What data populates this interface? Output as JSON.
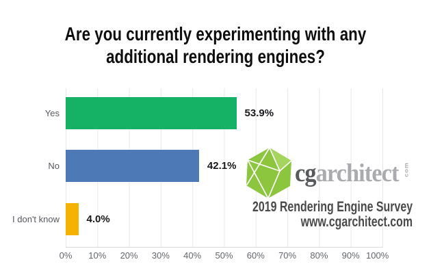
{
  "title": {
    "line1": "Are you currently experimenting with any",
    "line2": "additional rendering engines?"
  },
  "chart_data": {
    "type": "bar",
    "orientation": "horizontal",
    "categories": [
      "Yes",
      "No",
      "I don't know"
    ],
    "values": [
      53.9,
      42.1,
      4.0
    ],
    "value_labels": [
      "53.9%",
      "42.1%",
      "4.0%"
    ],
    "bar_colors": [
      "#15b266",
      "#4d79b7",
      "#f6b200"
    ],
    "xlabel": "",
    "ylabel": "",
    "xlim": [
      0,
      100
    ],
    "x_ticks": [
      "0%",
      "10%",
      "20%",
      "30%",
      "40%",
      "50%",
      "60%",
      "70%",
      "80%",
      "90%",
      "100%"
    ],
    "grid": true,
    "grid_color": "#e7e7e9",
    "legend": false
  },
  "watermark": {
    "brand_cg": "cg",
    "brand_rest": "architect",
    "brand_tld": "com",
    "logo_green": "#8cc63f",
    "logo_green_light": "#a5d55c",
    "survey_line1": "2019 Rendering Engine Survey",
    "survey_line2": "www.cgarchitect.com"
  }
}
